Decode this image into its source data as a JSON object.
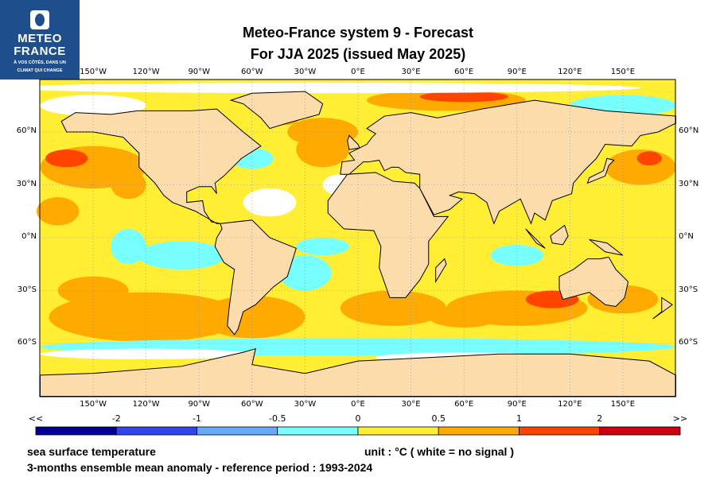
{
  "logo": {
    "line1": "METEO",
    "line2": "FRANCE",
    "tagline1": "À VOS CÔTÉS, DANS UN",
    "tagline2": "CLIMAT QUI CHANGE"
  },
  "header": {
    "title_line1": "Meteo-France system 9  -  Forecast",
    "title_line2": "For JJA 2025      (issued May 2025)"
  },
  "map": {
    "lon_labels": [
      "150°W",
      "120°W",
      "90°W",
      "60°W",
      "30°W",
      "0°E",
      "30°E",
      "60°E",
      "90°E",
      "120°E",
      "150°E"
    ],
    "lat_labels": [
      "60°N",
      "30°N",
      "0°N",
      "30°S",
      "60°S"
    ],
    "colors": {
      "land": "#fbdcaa",
      "no_signal": "#ffffff"
    }
  },
  "colorbar": {
    "labels": [
      "<<",
      "-2",
      "-1",
      "-0.5",
      "0",
      "0.5",
      "1",
      "2",
      ">>"
    ],
    "colors": [
      "#000099",
      "#3344ee",
      "#66aaff",
      "#77ffff",
      "#ffee33",
      "#ffaa00",
      "#ff4400",
      "#cc0011"
    ]
  },
  "footer": {
    "variable": "sea surface temperature",
    "unit": "unit : °C  ( white = no signal )",
    "description": "3-months ensemble mean anomaly - reference period : 1993-2024"
  }
}
